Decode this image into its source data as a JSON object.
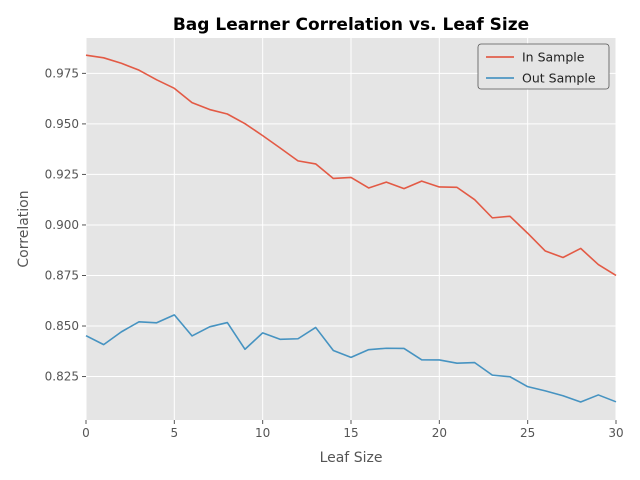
{
  "chart_data": {
    "type": "line",
    "title": "Bag Learner Correlation vs. Leaf Size",
    "xlabel": "Leaf Size",
    "ylabel": "Correlation",
    "xlim": [
      0,
      30
    ],
    "ylim": [
      0.8035,
      0.9925
    ],
    "xticks": [
      0,
      5,
      10,
      15,
      20,
      25,
      30
    ],
    "xtick_labels": [
      "0",
      "5",
      "10",
      "15",
      "20",
      "25",
      "30"
    ],
    "yticks": [
      0.825,
      0.85,
      0.875,
      0.9,
      0.925,
      0.95,
      0.975
    ],
    "ytick_labels": [
      "0.825",
      "0.850",
      "0.875",
      "0.900",
      "0.925",
      "0.950",
      "0.975"
    ],
    "grid": true,
    "legend": "top-right",
    "x": [
      0,
      1,
      2,
      3,
      4,
      5,
      6,
      7,
      8,
      9,
      10,
      11,
      12,
      13,
      14,
      15,
      16,
      17,
      18,
      19,
      20,
      21,
      22,
      23,
      24,
      25,
      26,
      27,
      28,
      29,
      30
    ],
    "series": [
      {
        "name": "In Sample",
        "color": "#E24A33",
        "values": [
          0.984,
          0.9827,
          0.98,
          0.9766,
          0.9718,
          0.9676,
          0.9605,
          0.9571,
          0.9549,
          0.9501,
          0.9442,
          0.938,
          0.9317,
          0.9302,
          0.923,
          0.9235,
          0.9183,
          0.9212,
          0.918,
          0.9217,
          0.9188,
          0.9186,
          0.9125,
          0.9035,
          0.9043,
          0.8959,
          0.8871,
          0.8839,
          0.8884,
          0.8804,
          0.875
        ]
      },
      {
        "name": "Out Sample",
        "color": "#348ABD",
        "values": [
          0.8452,
          0.8408,
          0.8471,
          0.8521,
          0.8516,
          0.8555,
          0.8451,
          0.8496,
          0.8517,
          0.8385,
          0.8466,
          0.8434,
          0.8437,
          0.8493,
          0.8379,
          0.8345,
          0.8383,
          0.839,
          0.8389,
          0.8333,
          0.8332,
          0.8316,
          0.8319,
          0.8257,
          0.8249,
          0.82,
          0.8179,
          0.8155,
          0.8124,
          0.8159,
          0.8125
        ]
      }
    ]
  }
}
